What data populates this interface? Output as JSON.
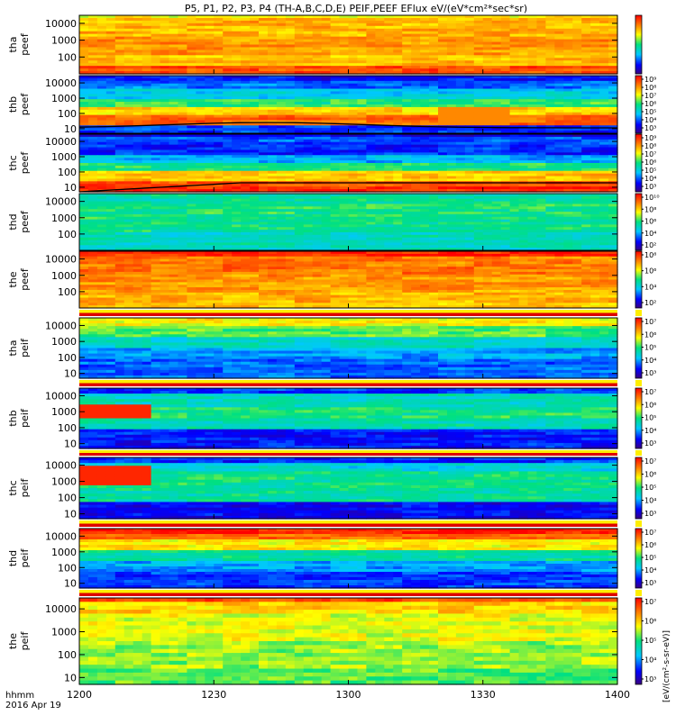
{
  "title": "P5, P1, P2, P3, P4 (TH-A,B,C,D,E) PEIF,PEEF EFlux eV/(eV*cm²*sec*sr)",
  "time_axis": {
    "label_line1": "hhmm",
    "label_line2": "2016 Apr 19",
    "ticks": [
      "1200",
      "1230",
      "1300",
      "1330",
      "1400"
    ]
  },
  "colorbar_label": "[eV/(cm²-s-sr-eV)]",
  "colors": {
    "background": "#ffffff",
    "frame": "#000000",
    "text": "#000000"
  },
  "chart_data": {
    "type": "heatmap",
    "x_range": [
      "12:00",
      "14:00"
    ],
    "y_scale": "log",
    "panels": [
      {
        "probe": "tha",
        "product": "peef",
        "y_ticks": [
          "10000",
          "1000",
          "100"
        ],
        "ylim": [
          10,
          30000
        ],
        "cbar_ticks": []
      },
      {
        "probe": "thb",
        "product": "peef",
        "y_ticks": [
          "10000",
          "1000",
          "100",
          "10"
        ],
        "ylim": [
          5,
          30000
        ],
        "cbar_ticks": [
          "10⁹",
          "10⁸",
          "10⁷",
          "10⁶",
          "10⁵",
          "10⁴",
          "10³"
        ]
      },
      {
        "probe": "thc",
        "product": "peef",
        "y_ticks": [
          "10000",
          "1000",
          "100",
          "10"
        ],
        "ylim": [
          5,
          30000
        ],
        "cbar_ticks": [
          "10⁹",
          "10⁸",
          "10⁷",
          "10⁶",
          "10⁵",
          "10⁴",
          "10³"
        ]
      },
      {
        "probe": "thd",
        "product": "peef",
        "y_ticks": [
          "10000",
          "1000",
          "100"
        ],
        "ylim": [
          10,
          30000
        ],
        "cbar_ticks": [
          "10¹⁰",
          "10⁸",
          "10⁶",
          "10⁴",
          "10²"
        ]
      },
      {
        "probe": "the",
        "product": "peef",
        "y_ticks": [
          "10000",
          "1000",
          "100"
        ],
        "ylim": [
          10,
          30000
        ],
        "cbar_ticks": [
          "10⁸",
          "10⁶",
          "10⁴",
          "10²"
        ]
      },
      {
        "probe": "tha",
        "product": "peif",
        "y_ticks": [
          "10000",
          "1000",
          "100",
          "10"
        ],
        "ylim": [
          5,
          30000
        ],
        "cbar_ticks": [
          "10⁷",
          "10⁶",
          "10⁵",
          "10⁴",
          "10³"
        ]
      },
      {
        "probe": "thb",
        "product": "peif",
        "y_ticks": [
          "10000",
          "1000",
          "100",
          "10"
        ],
        "ylim": [
          5,
          30000
        ],
        "cbar_ticks": [
          "10⁷",
          "10⁶",
          "10⁵",
          "10⁴",
          "10³"
        ]
      },
      {
        "probe": "thc",
        "product": "peif",
        "y_ticks": [
          "10000",
          "1000",
          "100",
          "10"
        ],
        "ylim": [
          5,
          30000
        ],
        "cbar_ticks": [
          "10⁷",
          "10⁶",
          "10⁵",
          "10⁴",
          "10³"
        ]
      },
      {
        "probe": "thd",
        "product": "peif",
        "y_ticks": [
          "10000",
          "1000",
          "100",
          "10"
        ],
        "ylim": [
          5,
          30000
        ],
        "cbar_ticks": [
          "10⁷",
          "10⁶",
          "10⁵",
          "10⁴",
          "10³"
        ]
      },
      {
        "probe": "the",
        "product": "peif",
        "y_ticks": [
          "10000",
          "1000",
          "100",
          "10"
        ],
        "ylim": [
          5,
          30000
        ],
        "cbar_ticks": [
          "10⁷",
          "10⁶",
          "10⁵",
          "10⁴",
          "10³"
        ]
      }
    ]
  }
}
